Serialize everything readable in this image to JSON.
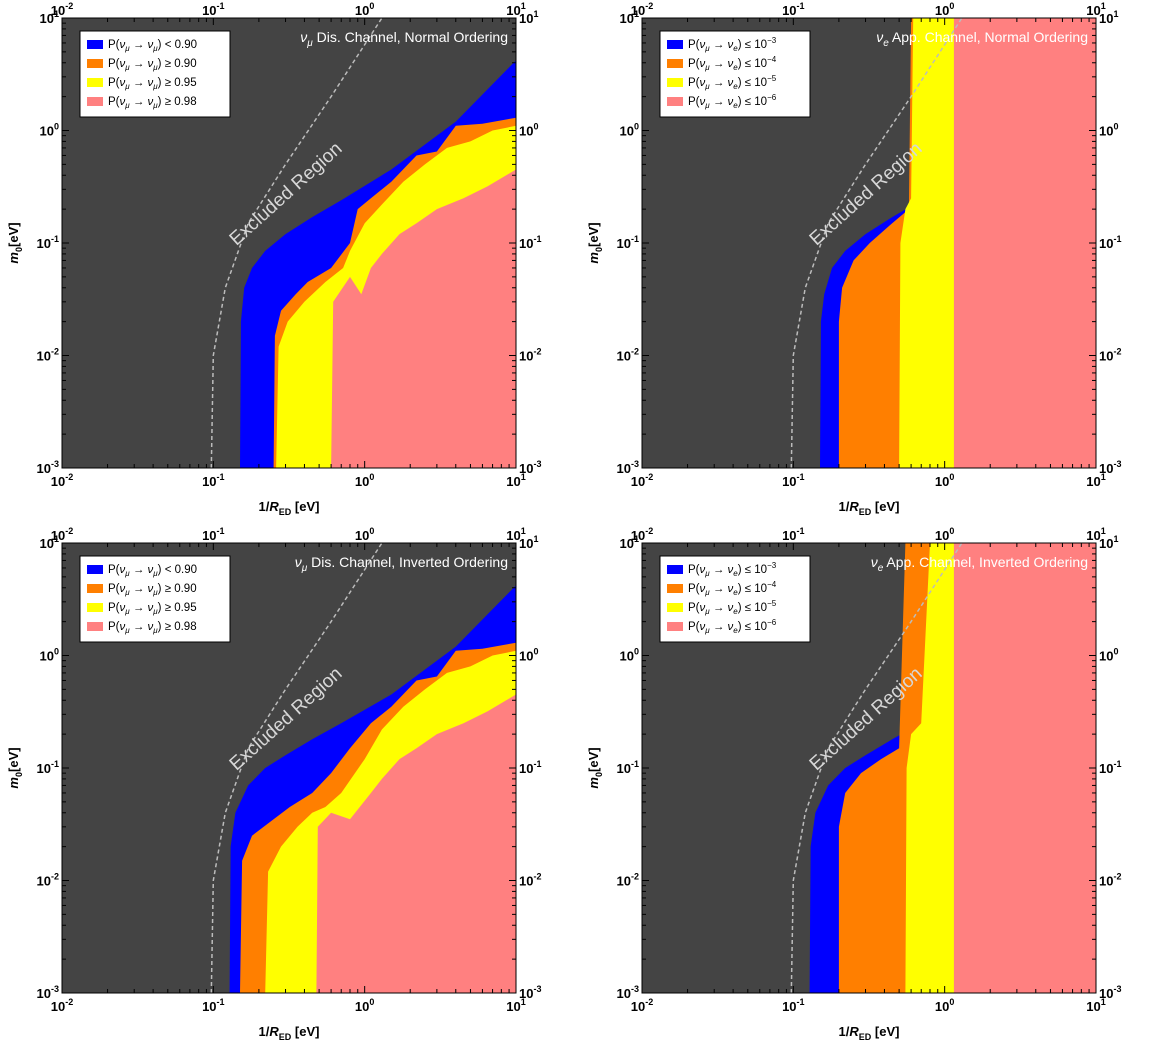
{
  "colors": {
    "excluded": "#444444",
    "blue": "#0000ff",
    "orange": "#ff7f00",
    "yellow": "#ffff00",
    "pink": "#ff8080",
    "dashed": "#bcbcbc"
  },
  "axes": {
    "x_label_main": "1/",
    "x_label_R": "R",
    "x_label_sub": "ED",
    "x_label_unit": " [eV]",
    "y_label_m": "m",
    "y_label_sub": "0",
    "y_label_unit": "[eV]",
    "x_range": [
      0.01,
      10
    ],
    "y_range": [
      0.001,
      10
    ],
    "scale": "log-log",
    "tick_base": "10",
    "x_tick_exponents": [
      "-2",
      "-1",
      "",
      "1"
    ],
    "y_tick_exponents": [
      "-3",
      "-2",
      "-1",
      "",
      "1"
    ],
    "x_tick_values": [
      0.01,
      0.1,
      1,
      10
    ],
    "y_tick_values": [
      0.001,
      0.01,
      0.1,
      1,
      10
    ]
  },
  "excluded_text": "Excluded Region",
  "chart_data": [
    {
      "type": "area",
      "title": "νμ Dis. Channel, Normal Ordering",
      "title_parts": [
        "ν",
        "μ",
        " Dis. Channel, Normal Ordering"
      ],
      "legend_position": "top-left",
      "legend": [
        {
          "color": "blue",
          "text": "P(νμ → νμ) < 0.90",
          "prefix": "P(",
          "s1": "μ",
          "s2": "μ",
          "rel": ") < 0.90",
          "exp": ""
        },
        {
          "color": "orange",
          "text": "P(νμ → νμ) ≥ 0.90",
          "prefix": "P(",
          "s1": "μ",
          "s2": "μ",
          "rel": ") ≥ 0.90",
          "exp": ""
        },
        {
          "color": "yellow",
          "text": "P(νμ → νμ) ≥ 0.95",
          "prefix": "P(",
          "s1": "μ",
          "s2": "μ",
          "rel": ") ≥ 0.95",
          "exp": ""
        },
        {
          "color": "pink",
          "text": "P(νμ → νμ) ≥ 0.98",
          "prefix": "P(",
          "s1": "μ",
          "s2": "μ",
          "rel": ") ≥ 0.98",
          "exp": ""
        }
      ],
      "allowed_boundary": [
        [
          0.15,
          0.001
        ],
        [
          0.152,
          0.02
        ],
        [
          0.16,
          0.04
        ],
        [
          0.18,
          0.06
        ],
        [
          0.22,
          0.085
        ],
        [
          0.3,
          0.12
        ],
        [
          0.45,
          0.17
        ],
        [
          0.7,
          0.24
        ],
        [
          1.5,
          0.45
        ],
        [
          4.0,
          1.2
        ],
        [
          10,
          4.2
        ]
      ],
      "regions": [
        {
          "color": "orange",
          "boundary": [
            [
              0.25,
              0.001
            ],
            [
              0.255,
              0.015
            ],
            [
              0.28,
              0.025
            ],
            [
              0.35,
              0.035
            ],
            [
              0.42,
              0.045
            ],
            [
              0.6,
              0.06
            ],
            [
              0.8,
              0.1
            ],
            [
              0.9,
              0.2
            ],
            [
              1.1,
              0.25
            ],
            [
              1.5,
              0.35
            ],
            [
              2.2,
              0.6
            ],
            [
              3.0,
              0.65
            ],
            [
              4.0,
              1.1
            ],
            [
              6.0,
              1.15
            ],
            [
              10,
              1.3
            ]
          ]
        },
        {
          "color": "yellow",
          "boundary": [
            [
              0.26,
              0.001
            ],
            [
              0.27,
              0.012
            ],
            [
              0.31,
              0.02
            ],
            [
              0.4,
              0.03
            ],
            [
              0.55,
              0.045
            ],
            [
              0.72,
              0.06
            ],
            [
              0.8,
              0.085
            ],
            [
              1.0,
              0.15
            ],
            [
              1.3,
              0.22
            ],
            [
              1.8,
              0.35
            ],
            [
              2.5,
              0.5
            ],
            [
              3.5,
              0.7
            ],
            [
              5.0,
              0.8
            ],
            [
              7.0,
              1.0
            ],
            [
              10,
              1.1
            ]
          ]
        },
        {
          "color": "pink",
          "boundary": [
            [
              0.6,
              0.001
            ],
            [
              0.62,
              0.03
            ],
            [
              0.8,
              0.05
            ],
            [
              0.95,
              0.035
            ],
            [
              1.1,
              0.06
            ],
            [
              1.3,
              0.08
            ],
            [
              1.7,
              0.12
            ],
            [
              2.2,
              0.15
            ],
            [
              3.0,
              0.2
            ],
            [
              4.5,
              0.25
            ],
            [
              6.5,
              0.32
            ],
            [
              10,
              0.45
            ]
          ]
        }
      ],
      "excluded_curve": [
        [
          0.097,
          0.001
        ],
        [
          0.1,
          0.01
        ],
        [
          0.12,
          0.04
        ],
        [
          0.17,
          0.15
        ],
        [
          0.3,
          0.5
        ],
        [
          0.6,
          2.0
        ],
        [
          1.3,
          10
        ]
      ]
    },
    {
      "type": "area",
      "title": "νe App. Channel, Normal Ordering",
      "title_parts": [
        "ν",
        "e",
        " App. Channel, Normal Ordering"
      ],
      "legend_position": "top-left",
      "legend": [
        {
          "color": "blue",
          "text": "P(νμ → νe) ≤ 10^-3",
          "prefix": "P(",
          "s1": "μ",
          "s2": "e",
          "rel": ") ≤ 10",
          "exp": "−3"
        },
        {
          "color": "orange",
          "text": "P(νμ → νe) ≤ 10^-4",
          "prefix": "P(",
          "s1": "μ",
          "s2": "e",
          "rel": ") ≤ 10",
          "exp": "−4"
        },
        {
          "color": "yellow",
          "text": "P(νμ → νe) ≤ 10^-5",
          "prefix": "P(",
          "s1": "μ",
          "s2": "e",
          "rel": ") ≤ 10",
          "exp": "−5"
        },
        {
          "color": "pink",
          "text": "P(νμ → νe) ≤ 10^-6",
          "prefix": "P(",
          "s1": "μ",
          "s2": "e",
          "rel": ") ≤ 10",
          "exp": "−6"
        }
      ],
      "allowed_boundary": [
        [
          0.15,
          0.001
        ],
        [
          0.152,
          0.02
        ],
        [
          0.16,
          0.035
        ],
        [
          0.18,
          0.06
        ],
        [
          0.22,
          0.085
        ],
        [
          0.3,
          0.12
        ],
        [
          0.45,
          0.17
        ],
        [
          0.7,
          0.24
        ],
        [
          1.5,
          0.45
        ],
        [
          4.0,
          1.2
        ],
        [
          10,
          4.2
        ]
      ],
      "regions": [
        {
          "color": "orange",
          "boundary": [
            [
              0.2,
              0.001
            ],
            [
              0.2,
              0.02
            ],
            [
              0.21,
              0.04
            ],
            [
              0.25,
              0.07
            ],
            [
              0.32,
              0.1
            ],
            [
              0.45,
              0.15
            ],
            [
              0.58,
              0.2
            ],
            [
              0.6,
              10
            ]
          ]
        },
        {
          "color": "yellow",
          "boundary": [
            [
              0.5,
              0.001
            ],
            [
              0.51,
              0.1
            ],
            [
              0.55,
              0.2
            ],
            [
              0.6,
              0.25
            ],
            [
              0.62,
              10
            ]
          ]
        },
        {
          "color": "pink",
          "boundary": [
            [
              1.15,
              0.001
            ],
            [
              1.15,
              10
            ]
          ]
        }
      ],
      "excluded_curve": [
        [
          0.097,
          0.001
        ],
        [
          0.1,
          0.01
        ],
        [
          0.12,
          0.04
        ],
        [
          0.17,
          0.15
        ],
        [
          0.3,
          0.5
        ],
        [
          0.6,
          2.0
        ],
        [
          1.3,
          10
        ]
      ]
    },
    {
      "type": "area",
      "title": "νμ Dis. Channel, Inverted Ordering",
      "title_parts": [
        "ν",
        "μ",
        " Dis. Channel, Inverted Ordering"
      ],
      "legend_position": "top-left",
      "legend": [
        {
          "color": "blue",
          "text": "P(νμ → νμ) < 0.90",
          "prefix": "P(",
          "s1": "μ",
          "s2": "μ",
          "rel": ") < 0.90",
          "exp": ""
        },
        {
          "color": "orange",
          "text": "P(νμ → νμ) ≥ 0.90",
          "prefix": "P(",
          "s1": "μ",
          "s2": "μ",
          "rel": ") ≥ 0.90",
          "exp": ""
        },
        {
          "color": "yellow",
          "text": "P(νμ → νμ) ≥ 0.95",
          "prefix": "P(",
          "s1": "μ",
          "s2": "μ",
          "rel": ") ≥ 0.95",
          "exp": ""
        },
        {
          "color": "pink",
          "text": "P(νμ → νμ) ≥ 0.98",
          "prefix": "P(",
          "s1": "μ",
          "s2": "μ",
          "rel": ") ≥ 0.98",
          "exp": ""
        }
      ],
      "allowed_boundary": [
        [
          0.128,
          0.001
        ],
        [
          0.13,
          0.02
        ],
        [
          0.14,
          0.04
        ],
        [
          0.17,
          0.07
        ],
        [
          0.22,
          0.1
        ],
        [
          0.3,
          0.13
        ],
        [
          0.45,
          0.18
        ],
        [
          0.7,
          0.25
        ],
        [
          1.5,
          0.45
        ],
        [
          4.0,
          1.2
        ],
        [
          10,
          4.2
        ]
      ],
      "regions": [
        {
          "color": "orange",
          "boundary": [
            [
              0.15,
              0.001
            ],
            [
              0.155,
              0.015
            ],
            [
              0.18,
              0.025
            ],
            [
              0.25,
              0.035
            ],
            [
              0.32,
              0.045
            ],
            [
              0.45,
              0.06
            ],
            [
              0.6,
              0.09
            ],
            [
              0.8,
              0.15
            ],
            [
              1.1,
              0.25
            ],
            [
              1.5,
              0.35
            ],
            [
              2.2,
              0.6
            ],
            [
              3.0,
              0.65
            ],
            [
              4.0,
              1.1
            ],
            [
              6.0,
              1.15
            ],
            [
              10,
              1.3
            ]
          ]
        },
        {
          "color": "yellow",
          "boundary": [
            [
              0.22,
              0.001
            ],
            [
              0.23,
              0.012
            ],
            [
              0.28,
              0.02
            ],
            [
              0.36,
              0.03
            ],
            [
              0.45,
              0.04
            ],
            [
              0.55,
              0.045
            ],
            [
              0.7,
              0.06
            ],
            [
              1.0,
              0.12
            ],
            [
              1.3,
              0.22
            ],
            [
              1.8,
              0.35
            ],
            [
              2.5,
              0.5
            ],
            [
              3.5,
              0.7
            ],
            [
              5.0,
              0.8
            ],
            [
              7.0,
              1.0
            ],
            [
              10,
              1.1
            ]
          ]
        },
        {
          "color": "pink",
          "boundary": [
            [
              0.48,
              0.001
            ],
            [
              0.49,
              0.03
            ],
            [
              0.6,
              0.04
            ],
            [
              0.8,
              0.035
            ],
            [
              1.1,
              0.06
            ],
            [
              1.3,
              0.08
            ],
            [
              1.7,
              0.12
            ],
            [
              2.2,
              0.15
            ],
            [
              3.0,
              0.2
            ],
            [
              4.5,
              0.25
            ],
            [
              6.5,
              0.32
            ],
            [
              10,
              0.45
            ]
          ]
        }
      ],
      "excluded_curve": [
        [
          0.097,
          0.001
        ],
        [
          0.1,
          0.01
        ],
        [
          0.12,
          0.04
        ],
        [
          0.17,
          0.15
        ],
        [
          0.3,
          0.5
        ],
        [
          0.6,
          2.0
        ],
        [
          1.3,
          10
        ]
      ]
    },
    {
      "type": "area",
      "title": "νe App. Channel, Inverted Ordering",
      "title_parts": [
        "ν",
        "e",
        " App. Channel, Inverted Ordering"
      ],
      "legend_position": "top-left",
      "legend": [
        {
          "color": "blue",
          "text": "P(νμ → νe) ≤ 10^-3",
          "prefix": "P(",
          "s1": "μ",
          "s2": "e",
          "rel": ") ≤ 10",
          "exp": "−3"
        },
        {
          "color": "orange",
          "text": "P(νμ → νe) ≤ 10^-4",
          "prefix": "P(",
          "s1": "μ",
          "s2": "e",
          "rel": ") ≤ 10",
          "exp": "−4"
        },
        {
          "color": "yellow",
          "text": "P(νμ → νe) ≤ 10^-5",
          "prefix": "P(",
          "s1": "μ",
          "s2": "e",
          "rel": ") ≤ 10",
          "exp": "−5"
        },
        {
          "color": "pink",
          "text": "P(νμ → νe) ≤ 10^-6",
          "prefix": "P(",
          "s1": "μ",
          "s2": "e",
          "rel": ") ≤ 10",
          "exp": "−6"
        }
      ],
      "allowed_boundary": [
        [
          0.128,
          0.001
        ],
        [
          0.13,
          0.02
        ],
        [
          0.14,
          0.04
        ],
        [
          0.17,
          0.07
        ],
        [
          0.22,
          0.1
        ],
        [
          0.3,
          0.13
        ],
        [
          0.45,
          0.18
        ],
        [
          0.7,
          0.25
        ],
        [
          1.5,
          0.45
        ],
        [
          4.0,
          1.2
        ],
        [
          10,
          4.2
        ]
      ],
      "regions": [
        {
          "color": "orange",
          "boundary": [
            [
              0.2,
              0.001
            ],
            [
              0.2,
              0.03
            ],
            [
              0.22,
              0.06
            ],
            [
              0.28,
              0.09
            ],
            [
              0.38,
              0.12
            ],
            [
              0.5,
              0.15
            ],
            [
              0.55,
              10
            ]
          ]
        },
        {
          "color": "yellow",
          "boundary": [
            [
              0.55,
              0.001
            ],
            [
              0.56,
              0.1
            ],
            [
              0.6,
              0.2
            ],
            [
              0.7,
              0.25
            ],
            [
              0.8,
              10
            ]
          ]
        },
        {
          "color": "pink",
          "boundary": [
            [
              1.15,
              0.001
            ],
            [
              1.15,
              0.25
            ],
            [
              1.15,
              10
            ]
          ]
        }
      ],
      "excluded_curve": [
        [
          0.097,
          0.001
        ],
        [
          0.1,
          0.01
        ],
        [
          0.12,
          0.04
        ],
        [
          0.17,
          0.15
        ],
        [
          0.3,
          0.5
        ],
        [
          0.6,
          2.0
        ],
        [
          1.3,
          10
        ]
      ]
    }
  ]
}
